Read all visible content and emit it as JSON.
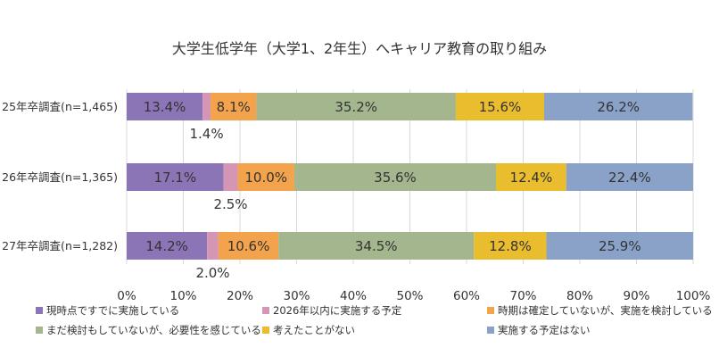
{
  "chart_data": {
    "type": "bar",
    "orientation": "horizontal",
    "stacked": "percent",
    "title": "大学生低学年（大学1、2年生）へキャリア教育の取り組み",
    "categories": [
      "25年卒調査(n=1,465)",
      "26年卒調査(n=1,365)",
      "27年卒調査(n=1,282)"
    ],
    "series": [
      {
        "name": "現時点ですでに実施している",
        "color": "#8C75B6",
        "values": [
          13.4,
          17.1,
          14.2
        ],
        "labels": [
          "13.4%",
          "17.1%",
          "14.2%"
        ]
      },
      {
        "name": "2026年以内に実施する予定",
        "color": "#D596B5",
        "values": [
          1.4,
          2.5,
          2.0
        ],
        "labels": [
          "1.4%",
          "2.5%",
          "2.0%"
        ]
      },
      {
        "name": "時期は確定していないが、実施を検討している",
        "color": "#F3A34C",
        "values": [
          8.1,
          10.0,
          10.6
        ],
        "labels": [
          "8.1%",
          "10.0%",
          "10.6%"
        ]
      },
      {
        "name": "まだ検討もしていないが、必要性を感じている",
        "color": "#A4B68E",
        "values": [
          35.2,
          35.6,
          34.5
        ],
        "labels": [
          "35.2%",
          "35.6%",
          "34.5%"
        ]
      },
      {
        "name": "考えたことがない",
        "color": "#E9BD2E",
        "values": [
          15.6,
          12.4,
          12.8
        ],
        "labels": [
          "15.6%",
          "12.4%",
          "12.8%"
        ]
      },
      {
        "name": "実施する予定はない",
        "color": "#8AA2C8",
        "values": [
          26.2,
          22.4,
          25.9
        ],
        "labels": [
          "26.2%",
          "22.4%",
          "25.9%"
        ]
      }
    ],
    "xlim": [
      0,
      100
    ],
    "xticks": [
      "0%",
      "10%",
      "20%",
      "30%",
      "40%",
      "50%",
      "60%",
      "70%",
      "80%",
      "90%",
      "100%"
    ],
    "grid": true,
    "legend_position": "bottom"
  }
}
